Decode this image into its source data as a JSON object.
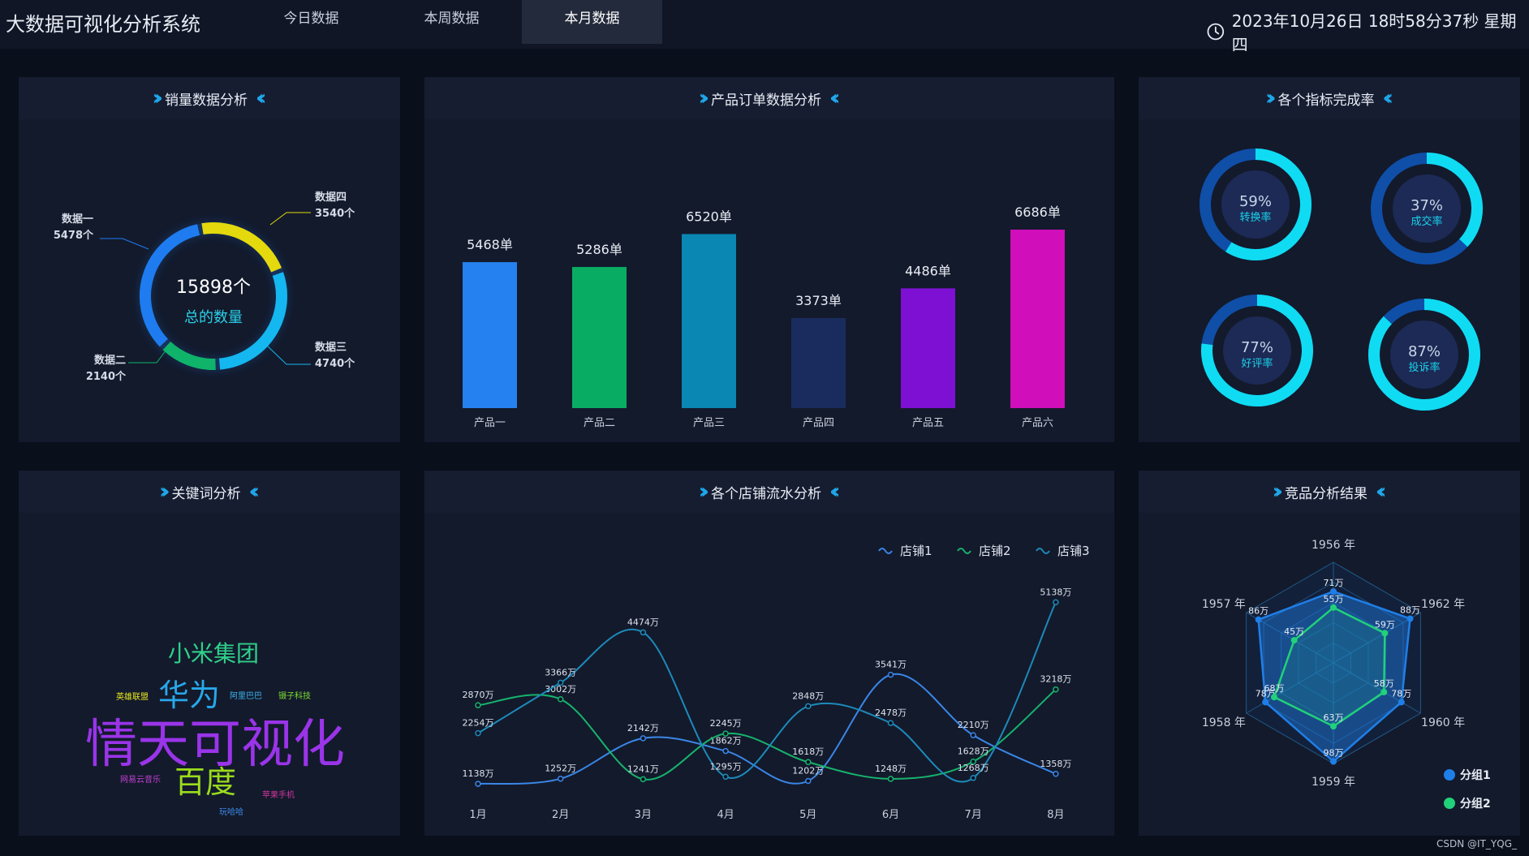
{
  "header": {
    "title": "大数据可视化分析系统",
    "tabs": [
      {
        "label": "今日数据",
        "active": false
      },
      {
        "label": "本周数据",
        "active": false
      },
      {
        "label": "本月数据",
        "active": true
      }
    ],
    "datetime": "2023年10月26日 18时58分37秒 星期四",
    "clock_icon": "clock-icon"
  },
  "sales": {
    "title": "销量数据分析",
    "total_value": "15898个",
    "total_label": "总的数量",
    "segments": [
      {
        "name": "数据一",
        "value": 5478,
        "label": "5478个",
        "color": "#1e7cf0"
      },
      {
        "name": "数据四",
        "value": 3540,
        "label": "3540个",
        "color": "#e4d90c"
      },
      {
        "name": "数据三",
        "value": 4740,
        "label": "4740个",
        "color": "#14b7f0"
      },
      {
        "name": "数据二",
        "value": 2140,
        "label": "2140个",
        "color": "#0fb46a"
      }
    ]
  },
  "orders": {
    "title": "产品订单数据分析",
    "chart_data": {
      "type": "bar",
      "categories": [
        "产品一",
        "产品二",
        "产品三",
        "产品四",
        "产品五",
        "产品六"
      ],
      "values": [
        5468,
        5286,
        6520,
        3373,
        4486,
        6686
      ],
      "value_labels": [
        "5468单",
        "5286单",
        "6520单",
        "3373单",
        "4486单",
        "6686单"
      ],
      "colors": [
        "#2581ef",
        "#08ad63",
        "#0b87b3",
        "#1a2c5e",
        "#7e10d4",
        "#d00eba"
      ]
    }
  },
  "kpi": {
    "title": "各个指标完成率",
    "items": [
      {
        "value": 59,
        "percent": "59%",
        "label": "转换率"
      },
      {
        "value": 37,
        "percent": "37%",
        "label": "成交率"
      },
      {
        "value": 77,
        "percent": "77%",
        "label": "好评率"
      },
      {
        "value": 87,
        "percent": "87%",
        "label": "投诉率"
      }
    ]
  },
  "keywords": {
    "title": "关键词分析",
    "words": [
      {
        "text": "小米集团",
        "color": "#2fd08a"
      },
      {
        "text": "英雄联盟",
        "color": "#e7e51d"
      },
      {
        "text": "华为",
        "color": "#27a8ea"
      },
      {
        "text": "阿里巴巴",
        "color": "#3cb4f0"
      },
      {
        "text": "镊子科技",
        "color": "#7ddc2f"
      },
      {
        "text": "情天可视化",
        "color": "#9a34e9"
      },
      {
        "text": "网易云音乐",
        "color": "#c23fd0"
      },
      {
        "text": "百度",
        "color": "#9bdc1c"
      },
      {
        "text": "苹果手机",
        "color": "#d0369c"
      },
      {
        "text": "玩哈哈",
        "color": "#3c8bea"
      }
    ]
  },
  "stores": {
    "title": "各个店铺流水分析",
    "chart_data": {
      "type": "line",
      "categories": [
        "1月",
        "2月",
        "3月",
        "4月",
        "5月",
        "6月",
        "7月",
        "8月"
      ],
      "series": [
        {
          "name": "店铺1",
          "color": "#3a86e6",
          "values": [
            1138,
            1252,
            2142,
            1862,
            1202,
            3541,
            2210,
            1358
          ],
          "labels": [
            "1138万",
            "1252万",
            "2142万",
            "1862万",
            "1202万",
            "3541万",
            "2210万",
            "1358万"
          ]
        },
        {
          "name": "店铺2",
          "color": "#17b26c",
          "values": [
            2870,
            3002,
            1241,
            2245,
            1618,
            1248,
            1628,
            3218
          ],
          "labels": [
            "2870万",
            "3002万",
            "1241万",
            "2245万",
            "1618万",
            "1248万",
            "1628万",
            "3218万"
          ]
        },
        {
          "name": "店铺3",
          "color": "#1d8ab9",
          "values": [
            2254,
            3366,
            4474,
            1295,
            2848,
            2478,
            1268,
            5138
          ],
          "labels": [
            "2254万",
            "3366万",
            "4474万",
            "1295万",
            "2848万",
            "2478万",
            "1268万",
            "5138万"
          ]
        }
      ],
      "legend_icon": "wave-icon"
    }
  },
  "compete": {
    "title": "竞品分析结果",
    "chart_data": {
      "type": "radar",
      "indicators": [
        "1956 年",
        "1962 年",
        "1960 年",
        "1959 年",
        "1958 年",
        "1957 年"
      ],
      "series": [
        {
          "name": "分组1",
          "color": "#1f7fe8",
          "values": [
            71,
            88,
            78,
            98,
            78,
            86
          ],
          "labels": [
            "71万",
            "88万",
            "78万",
            "98万",
            "78万",
            "86万"
          ]
        },
        {
          "name": "分组2",
          "color": "#21d17a",
          "values": [
            55,
            59,
            58,
            63,
            68,
            45
          ],
          "labels": [
            "55万",
            "59万",
            "58万",
            "63万",
            "68万",
            "45万"
          ]
        }
      ]
    }
  },
  "credit": "CSDN @IT_YQG_"
}
